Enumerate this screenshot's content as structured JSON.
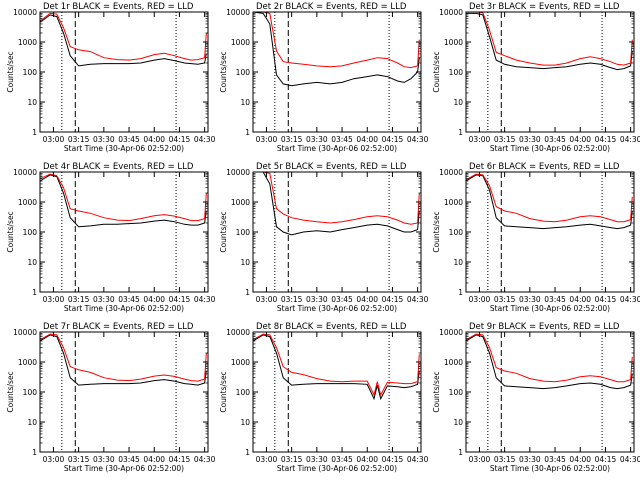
{
  "colors": {
    "events": "#000000",
    "lld": "#ff0000",
    "background": "#ffffff"
  },
  "x_ticks": [
    "03:00",
    "03:15",
    "03:30",
    "03:45",
    "04:00",
    "04:15",
    "04:30"
  ],
  "y_ticks": [
    "1",
    "10",
    "100",
    "1000",
    "10000"
  ],
  "chart_data": [
    {
      "type": "line",
      "title": "Det 1r BLACK = Events, RED = LLD",
      "xlabel": "Start Time (30-Apr-06 02:52:00)",
      "ylabel": "Counts/sec",
      "y_scale": "log",
      "ylim": [
        1,
        10000
      ],
      "xlim": [
        "02:52",
        "04:32"
      ],
      "x": [
        "02:52",
        "02:58",
        "03:02",
        "03:06",
        "03:10",
        "03:15",
        "03:22",
        "03:30",
        "03:38",
        "03:45",
        "03:52",
        "04:00",
        "04:06",
        "04:12",
        "04:18",
        "04:22",
        "04:26",
        "04:30",
        "04:31"
      ],
      "series": [
        {
          "name": "BLACK = Events",
          "values": [
            4500,
            8000,
            7000,
            2000,
            350,
            160,
            180,
            190,
            190,
            190,
            200,
            250,
            280,
            240,
            200,
            190,
            180,
            200,
            400
          ]
        },
        {
          "name": "RED = LLD",
          "values": [
            5000,
            9000,
            8500,
            3000,
            700,
            550,
            480,
            300,
            260,
            250,
            280,
            380,
            420,
            350,
            280,
            250,
            260,
            300,
            2000
          ]
        }
      ],
      "markers": {
        "dashed": [
          "03:13"
        ],
        "dotted": [
          "03:05",
          "04:13"
        ]
      }
    },
    {
      "type": "line",
      "title": "Det 2r BLACK = Events, RED = LLD",
      "xlabel": "Start Time (30-Apr-06 02:52:00)",
      "ylabel": "Counts/sec",
      "y_scale": "log",
      "ylim": [
        1,
        10000
      ],
      "xlim": [
        "02:52",
        "04:32"
      ],
      "x": [
        "02:52",
        "02:58",
        "03:02",
        "03:06",
        "03:10",
        "03:15",
        "03:22",
        "03:30",
        "03:38",
        "03:45",
        "03:52",
        "04:00",
        "04:06",
        "04:12",
        "04:18",
        "04:22",
        "04:26",
        "04:30",
        "04:31"
      ],
      "series": [
        {
          "name": "BLACK = Events",
          "values": [
            10000,
            9000,
            4000,
            80,
            40,
            35,
            40,
            45,
            40,
            45,
            60,
            70,
            80,
            70,
            50,
            45,
            60,
            100,
            300
          ]
        },
        {
          "name": "RED = LLD",
          "values": [
            10000,
            10000,
            9000,
            500,
            220,
            200,
            180,
            160,
            150,
            160,
            200,
            250,
            300,
            280,
            200,
            150,
            140,
            160,
            1200
          ]
        }
      ],
      "markers": {
        "dashed": [
          "03:13"
        ],
        "dotted": [
          "03:05",
          "04:13"
        ]
      }
    },
    {
      "type": "line",
      "title": "Det 3r BLACK = Events, RED = LLD",
      "xlabel": "Start Time (30-Apr-06 02:52:00)",
      "ylabel": "Counts/sec",
      "y_scale": "log",
      "ylim": [
        1,
        10000
      ],
      "xlim": [
        "02:52",
        "04:32"
      ],
      "x": [
        "02:52",
        "02:58",
        "03:02",
        "03:06",
        "03:10",
        "03:15",
        "03:22",
        "03:30",
        "03:38",
        "03:45",
        "03:52",
        "04:00",
        "04:06",
        "04:12",
        "04:18",
        "04:22",
        "04:26",
        "04:30",
        "04:31"
      ],
      "series": [
        {
          "name": "BLACK = Events",
          "values": [
            9000,
            9000,
            8000,
            1500,
            250,
            180,
            150,
            140,
            130,
            140,
            150,
            180,
            200,
            180,
            140,
            120,
            130,
            160,
            500
          ]
        },
        {
          "name": "RED = LLD",
          "values": [
            10000,
            10000,
            9500,
            2500,
            450,
            350,
            250,
            200,
            170,
            170,
            200,
            280,
            320,
            280,
            220,
            180,
            170,
            200,
            1200
          ]
        }
      ],
      "markers": {
        "dashed": [
          "03:13"
        ],
        "dotted": [
          "03:05",
          "04:13"
        ]
      }
    },
    {
      "type": "line",
      "title": "Det 4r BLACK = Events, RED = LLD",
      "xlabel": "Start Time (30-Apr-06 02:52:00)",
      "ylabel": "Counts/sec",
      "y_scale": "log",
      "ylim": [
        1,
        10000
      ],
      "xlim": [
        "02:52",
        "04:32"
      ],
      "x": [
        "02:52",
        "02:58",
        "03:02",
        "03:06",
        "03:10",
        "03:15",
        "03:22",
        "03:30",
        "03:38",
        "03:45",
        "03:52",
        "04:00",
        "04:06",
        "04:12",
        "04:18",
        "04:22",
        "04:26",
        "04:30",
        "04:31"
      ],
      "series": [
        {
          "name": "BLACK = Events",
          "values": [
            5000,
            8000,
            7000,
            2000,
            300,
            150,
            160,
            180,
            180,
            190,
            200,
            230,
            250,
            220,
            180,
            170,
            170,
            200,
            500
          ]
        },
        {
          "name": "RED = LLD",
          "values": [
            6000,
            8500,
            7500,
            3000,
            600,
            500,
            420,
            300,
            250,
            240,
            280,
            350,
            380,
            340,
            280,
            240,
            240,
            280,
            2000
          ]
        }
      ],
      "markers": {
        "dashed": [
          "03:13"
        ],
        "dotted": [
          "03:05",
          "04:13"
        ]
      }
    },
    {
      "type": "line",
      "title": "Det 5r BLACK = Events, RED = LLD",
      "xlabel": "Start Time (30-Apr-06 02:52:00)",
      "ylabel": "Counts/sec",
      "y_scale": "log",
      "ylim": [
        1,
        10000
      ],
      "xlim": [
        "02:52",
        "04:32"
      ],
      "x": [
        "02:52",
        "02:58",
        "03:02",
        "03:06",
        "03:10",
        "03:15",
        "03:22",
        "03:30",
        "03:38",
        "03:45",
        "03:52",
        "04:00",
        "04:06",
        "04:12",
        "04:18",
        "04:22",
        "04:26",
        "04:30",
        "04:31"
      ],
      "series": [
        {
          "name": "BLACK = Events",
          "values": [
            10000,
            10000,
            4000,
            150,
            100,
            80,
            100,
            110,
            100,
            120,
            140,
            170,
            180,
            160,
            120,
            100,
            100,
            120,
            500
          ]
        },
        {
          "name": "RED = LLD",
          "values": [
            10000,
            10000,
            9000,
            600,
            400,
            300,
            250,
            220,
            200,
            220,
            260,
            320,
            350,
            320,
            250,
            200,
            180,
            200,
            2000
          ]
        }
      ],
      "markers": {
        "dashed": [
          "03:13"
        ],
        "dotted": [
          "03:05",
          "04:13"
        ]
      }
    },
    {
      "type": "line",
      "title": "Det 6r BLACK = Events, RED = LLD",
      "xlabel": "Start Time (30-Apr-06 02:52:00)",
      "ylabel": "Counts/sec",
      "y_scale": "log",
      "ylim": [
        1,
        10000
      ],
      "xlim": [
        "02:52",
        "04:32"
      ],
      "x": [
        "02:52",
        "02:58",
        "03:02",
        "03:06",
        "03:10",
        "03:15",
        "03:22",
        "03:30",
        "03:38",
        "03:45",
        "03:52",
        "04:00",
        "04:06",
        "04:12",
        "04:18",
        "04:22",
        "04:26",
        "04:30",
        "04:31"
      ],
      "series": [
        {
          "name": "BLACK = Events",
          "values": [
            5000,
            8000,
            7500,
            2500,
            300,
            160,
            150,
            140,
            130,
            140,
            150,
            170,
            180,
            160,
            140,
            130,
            140,
            170,
            500
          ]
        },
        {
          "name": "RED = LLD",
          "values": [
            5500,
            8500,
            8000,
            3500,
            700,
            500,
            420,
            280,
            230,
            220,
            250,
            320,
            350,
            320,
            260,
            220,
            220,
            260,
            1500
          ]
        }
      ],
      "markers": {
        "dashed": [
          "03:13"
        ],
        "dotted": [
          "03:05",
          "04:13"
        ]
      }
    },
    {
      "type": "line",
      "title": "Det 7r BLACK = Events, RED = LLD",
      "xlabel": "Start Time (30-Apr-06 02:52:00)",
      "ylabel": "Counts/sec",
      "y_scale": "log",
      "ylim": [
        1,
        10000
      ],
      "xlim": [
        "02:52",
        "04:32"
      ],
      "x": [
        "02:52",
        "02:58",
        "03:02",
        "03:06",
        "03:10",
        "03:15",
        "03:22",
        "03:30",
        "03:38",
        "03:45",
        "03:52",
        "04:00",
        "04:06",
        "04:12",
        "04:18",
        "04:22",
        "04:26",
        "04:30",
        "04:31"
      ],
      "series": [
        {
          "name": "BLACK = Events",
          "values": [
            5000,
            8000,
            7000,
            2000,
            300,
            170,
            180,
            190,
            190,
            190,
            200,
            240,
            260,
            230,
            190,
            180,
            170,
            200,
            500
          ]
        },
        {
          "name": "RED = LLD",
          "values": [
            5500,
            8500,
            8000,
            3000,
            700,
            550,
            450,
            300,
            250,
            240,
            270,
            340,
            370,
            330,
            270,
            240,
            230,
            270,
            2000
          ]
        }
      ],
      "markers": {
        "dashed": [
          "03:13"
        ],
        "dotted": [
          "03:05",
          "04:13"
        ]
      }
    },
    {
      "type": "line",
      "title": "Det 8r BLACK = Events, RED = LLD",
      "xlabel": "Start Time (30-Apr-06 02:52:00)",
      "ylabel": "Counts/sec",
      "y_scale": "log",
      "ylim": [
        1,
        10000
      ],
      "xlim": [
        "02:52",
        "04:32"
      ],
      "x": [
        "02:52",
        "02:58",
        "03:02",
        "03:06",
        "03:10",
        "03:15",
        "03:22",
        "03:30",
        "03:38",
        "03:45",
        "03:52",
        "04:00",
        "04:04",
        "04:06",
        "04:08",
        "04:12",
        "04:18",
        "04:22",
        "04:26",
        "04:30",
        "04:31"
      ],
      "series": [
        {
          "name": "BLACK = Events",
          "values": [
            5000,
            8000,
            7000,
            2000,
            300,
            170,
            180,
            190,
            190,
            190,
            190,
            180,
            60,
            170,
            60,
            160,
            150,
            140,
            150,
            180,
            500
          ]
        },
        {
          "name": "RED = LLD",
          "values": [
            5500,
            8500,
            8000,
            3000,
            700,
            450,
            380,
            280,
            230,
            220,
            230,
            230,
            80,
            220,
            80,
            210,
            200,
            190,
            190,
            220,
            1800
          ]
        }
      ],
      "markers": {
        "dashed": [
          "03:13"
        ],
        "dotted": [
          "03:05",
          "04:13"
        ]
      }
    },
    {
      "type": "line",
      "title": "Det 9r BLACK = Events, RED = LLD",
      "xlabel": "Start Time (30-Apr-06 02:52:00)",
      "ylabel": "Counts/sec",
      "y_scale": "log",
      "ylim": [
        1,
        10000
      ],
      "xlim": [
        "02:52",
        "04:32"
      ],
      "x": [
        "02:52",
        "02:58",
        "03:02",
        "03:06",
        "03:10",
        "03:15",
        "03:22",
        "03:30",
        "03:38",
        "03:45",
        "03:52",
        "04:00",
        "04:06",
        "04:12",
        "04:18",
        "04:22",
        "04:26",
        "04:30",
        "04:31"
      ],
      "series": [
        {
          "name": "BLACK = Events",
          "values": [
            5000,
            8000,
            7000,
            2000,
            300,
            160,
            150,
            140,
            130,
            140,
            160,
            190,
            200,
            180,
            140,
            130,
            140,
            170,
            400
          ]
        },
        {
          "name": "RED = LLD",
          "values": [
            5500,
            8500,
            8000,
            3000,
            650,
            500,
            420,
            280,
            230,
            220,
            250,
            320,
            350,
            320,
            260,
            220,
            220,
            260,
            1500
          ]
        }
      ],
      "markers": {
        "dashed": [
          "03:13"
        ],
        "dotted": [
          "03:05",
          "04:13"
        ]
      }
    }
  ]
}
